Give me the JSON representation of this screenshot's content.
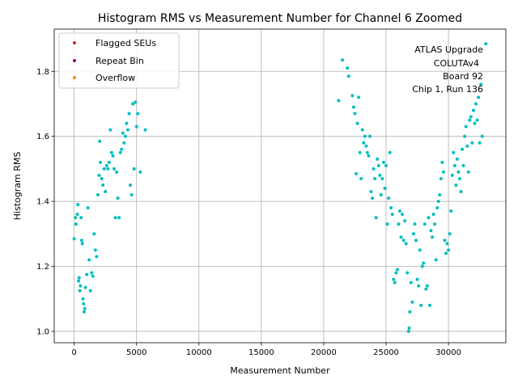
{
  "chart_data": {
    "type": "scatter",
    "title": "Histogram RMS vs Measurement Number for Channel 6 Zoomed",
    "xlabel": "Measurement Number",
    "ylabel": "Histogram RMS",
    "xlim": [
      -1600,
      34600
    ],
    "ylim": [
      0.965,
      1.93
    ],
    "xticks": [
      0,
      5000,
      10000,
      15000,
      20000,
      25000,
      30000
    ],
    "yticks": [
      1.0,
      1.2,
      1.4,
      1.6,
      1.8
    ],
    "xtick_labels": [
      "0",
      "5000",
      "10000",
      "15000",
      "20000",
      "25000",
      "30000"
    ],
    "ytick_labels": [
      "1.0",
      "1.2",
      "1.4",
      "1.6",
      "1.8"
    ],
    "grid": true,
    "legend_position": "top-left",
    "legend": [
      {
        "label": "Flagged SEUs",
        "color": "#d62728"
      },
      {
        "label": "Repeat Bin",
        "color": "#800080"
      },
      {
        "label": "Overflow",
        "color": "#ff7f0e"
      }
    ],
    "annotation": [
      "ATLAS Upgrade",
      "COLUTAv4",
      "Board 92",
      "Chip 1, Run 136"
    ],
    "series": [
      {
        "name": "Channel 6",
        "color": "#00bfbf",
        "points": [
          [
            0,
            1.285
          ],
          [
            100,
            1.35
          ],
          [
            150,
            1.33
          ],
          [
            250,
            1.36
          ],
          [
            300,
            1.39
          ],
          [
            350,
            1.155
          ],
          [
            400,
            1.165
          ],
          [
            450,
            1.125
          ],
          [
            500,
            1.14
          ],
          [
            550,
            1.35
          ],
          [
            600,
            1.28
          ],
          [
            650,
            1.27
          ],
          [
            700,
            1.1
          ],
          [
            750,
            1.085
          ],
          [
            800,
            1.06
          ],
          [
            850,
            1.07
          ],
          [
            900,
            1.135
          ],
          [
            1000,
            1.175
          ],
          [
            1100,
            1.38
          ],
          [
            1200,
            1.22
          ],
          [
            1300,
            1.125
          ],
          [
            1400,
            1.18
          ],
          [
            1500,
            1.17
          ],
          [
            1600,
            1.3
          ],
          [
            1700,
            1.25
          ],
          [
            1800,
            1.23
          ],
          [
            1900,
            1.42
          ],
          [
            2000,
            1.48
          ],
          [
            2050,
            1.585
          ],
          [
            2100,
            1.52
          ],
          [
            2200,
            1.47
          ],
          [
            2300,
            1.45
          ],
          [
            2400,
            1.5
          ],
          [
            2500,
            1.43
          ],
          [
            2600,
            1.51
          ],
          [
            2700,
            1.5
          ],
          [
            2800,
            1.52
          ],
          [
            2900,
            1.62
          ],
          [
            3000,
            1.55
          ],
          [
            3100,
            1.54
          ],
          [
            3200,
            1.5
          ],
          [
            3300,
            1.35
          ],
          [
            3400,
            1.49
          ],
          [
            3500,
            1.41
          ],
          [
            3600,
            1.35
          ],
          [
            3700,
            1.55
          ],
          [
            3800,
            1.56
          ],
          [
            3900,
            1.61
          ],
          [
            4000,
            1.58
          ],
          [
            4100,
            1.6
          ],
          [
            4200,
            1.64
          ],
          [
            4300,
            1.62
          ],
          [
            4400,
            1.67
          ],
          [
            4500,
            1.45
          ],
          [
            4600,
            1.42
          ],
          [
            4700,
            1.7
          ],
          [
            4800,
            1.5
          ],
          [
            4900,
            1.705
          ],
          [
            5000,
            1.63
          ],
          [
            5100,
            1.67
          ],
          [
            5300,
            1.49
          ],
          [
            5700,
            1.62
          ],
          [
            21200,
            1.71
          ],
          [
            21500,
            1.835
          ],
          [
            21900,
            1.81
          ],
          [
            22000,
            1.785
          ],
          [
            22300,
            1.725
          ],
          [
            22400,
            1.69
          ],
          [
            22500,
            1.67
          ],
          [
            22600,
            1.485
          ],
          [
            22700,
            1.64
          ],
          [
            22800,
            1.72
          ],
          [
            22900,
            1.55
          ],
          [
            23000,
            1.47
          ],
          [
            23100,
            1.62
          ],
          [
            23200,
            1.58
          ],
          [
            23300,
            1.6
          ],
          [
            23400,
            1.57
          ],
          [
            23500,
            1.55
          ],
          [
            23600,
            1.54
          ],
          [
            23700,
            1.6
          ],
          [
            23800,
            1.43
          ],
          [
            23900,
            1.41
          ],
          [
            24000,
            1.5
          ],
          [
            24100,
            1.47
          ],
          [
            24200,
            1.35
          ],
          [
            24300,
            1.53
          ],
          [
            24400,
            1.51
          ],
          [
            24500,
            1.48
          ],
          [
            24600,
            1.42
          ],
          [
            24700,
            1.47
          ],
          [
            24800,
            1.52
          ],
          [
            24900,
            1.44
          ],
          [
            25000,
            1.51
          ],
          [
            25100,
            1.33
          ],
          [
            25200,
            1.41
          ],
          [
            25300,
            1.55
          ],
          [
            25400,
            1.38
          ],
          [
            25500,
            1.36
          ],
          [
            25600,
            1.16
          ],
          [
            25700,
            1.15
          ],
          [
            25800,
            1.18
          ],
          [
            25900,
            1.19
          ],
          [
            26000,
            1.33
          ],
          [
            26100,
            1.37
          ],
          [
            26200,
            1.29
          ],
          [
            26300,
            1.36
          ],
          [
            26400,
            1.28
          ],
          [
            26500,
            1.34
          ],
          [
            26600,
            1.27
          ],
          [
            26700,
            1.18
          ],
          [
            26800,
            1.0
          ],
          [
            26850,
            1.01
          ],
          [
            26900,
            1.06
          ],
          [
            27000,
            1.15
          ],
          [
            27100,
            1.09
          ],
          [
            27200,
            1.3
          ],
          [
            27300,
            1.33
          ],
          [
            27400,
            1.28
          ],
          [
            27500,
            1.16
          ],
          [
            27600,
            1.14
          ],
          [
            27700,
            1.25
          ],
          [
            27800,
            1.08
          ],
          [
            27900,
            1.2
          ],
          [
            28000,
            1.21
          ],
          [
            28100,
            1.33
          ],
          [
            28200,
            1.13
          ],
          [
            28300,
            1.14
          ],
          [
            28400,
            1.35
          ],
          [
            28500,
            1.08
          ],
          [
            28600,
            1.31
          ],
          [
            28700,
            1.29
          ],
          [
            28800,
            1.36
          ],
          [
            28900,
            1.33
          ],
          [
            29000,
            1.22
          ],
          [
            29100,
            1.38
          ],
          [
            29200,
            1.4
          ],
          [
            29300,
            1.42
          ],
          [
            29400,
            1.47
          ],
          [
            29500,
            1.52
          ],
          [
            29600,
            1.49
          ],
          [
            29700,
            1.28
          ],
          [
            29800,
            1.24
          ],
          [
            29900,
            1.27
          ],
          [
            30000,
            1.25
          ],
          [
            30100,
            1.3
          ],
          [
            30200,
            1.37
          ],
          [
            30300,
            1.48
          ],
          [
            30400,
            1.55
          ],
          [
            30500,
            1.51
          ],
          [
            30600,
            1.45
          ],
          [
            30700,
            1.53
          ],
          [
            30800,
            1.49
          ],
          [
            30900,
            1.47
          ],
          [
            31000,
            1.43
          ],
          [
            31100,
            1.56
          ],
          [
            31200,
            1.51
          ],
          [
            31300,
            1.6
          ],
          [
            31400,
            1.63
          ],
          [
            31500,
            1.57
          ],
          [
            31600,
            1.49
          ],
          [
            31700,
            1.65
          ],
          [
            31800,
            1.66
          ],
          [
            31900,
            1.58
          ],
          [
            32000,
            1.68
          ],
          [
            32100,
            1.64
          ],
          [
            32200,
            1.7
          ],
          [
            32300,
            1.65
          ],
          [
            32400,
            1.72
          ],
          [
            32500,
            1.58
          ],
          [
            32600,
            1.76
          ],
          [
            32700,
            1.6
          ],
          [
            33000,
            1.885
          ]
        ]
      }
    ]
  }
}
